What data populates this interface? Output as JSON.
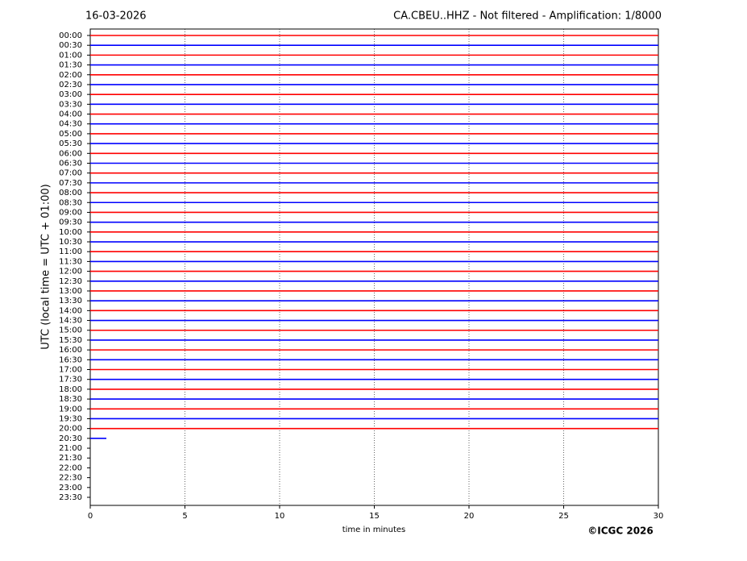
{
  "chart_data": {
    "type": "helicorder",
    "date": "16-03-2026",
    "title": "CA.CBEU..HHZ - Not filtered - Amplification: 1/8000",
    "y_label": "UTC (local time = UTC + 01:00)",
    "x_label": "time in minutes",
    "annotation": "©ICGC 2026",
    "categories": [
      "00:00",
      "00:30",
      "01:00",
      "01:30",
      "02:00",
      "02:30",
      "03:00",
      "03:30",
      "04:00",
      "04:30",
      "05:00",
      "05:30",
      "06:00",
      "06:30",
      "07:00",
      "07:30",
      "08:00",
      "08:30",
      "09:00",
      "09:30",
      "10:00",
      "10:30",
      "11:00",
      "11:30",
      "12:00",
      "12:30",
      "13:00",
      "13:30",
      "14:00",
      "14:30",
      "15:00",
      "15:30",
      "16:00",
      "16:30",
      "17:00",
      "17:30",
      "18:00",
      "18:30",
      "19:00",
      "19:30",
      "20:00",
      "20:30",
      "21:00",
      "21:30",
      "22:00",
      "22:30",
      "23:00",
      "23:30"
    ],
    "values": [
      30,
      30,
      30,
      30,
      30,
      30,
      30,
      30,
      30,
      30,
      30,
      30,
      30,
      30,
      30,
      30,
      30,
      30,
      30,
      30,
      30,
      30,
      30,
      30,
      30,
      30,
      30,
      30,
      30,
      30,
      30,
      30,
      30,
      30,
      30,
      30,
      30,
      30,
      30,
      30,
      30,
      0.85,
      null,
      null,
      null,
      null,
      null,
      null
    ],
    "colors": [
      "#ff0000",
      "#0000ff"
    ],
    "xlim": [
      0,
      30
    ],
    "xticks": [
      0,
      5,
      10,
      15,
      20,
      25,
      30
    ],
    "grid": true
  }
}
